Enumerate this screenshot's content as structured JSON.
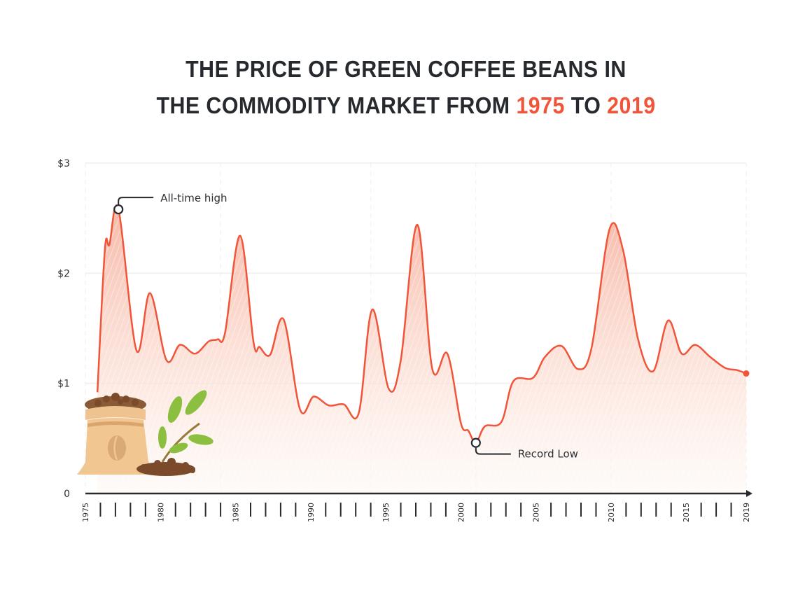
{
  "title": {
    "line1": "THE PRICE OF GREEN COFFEE BEANS IN",
    "line2_prefix": "THE COMMODITY MARKET FROM ",
    "start_year": "1975",
    "middle": " TO ",
    "end_year": "2019"
  },
  "colors": {
    "line": "#f0553a",
    "title": "#262a2e",
    "accent": "#f0553a",
    "fill_top": "#f6b4a2"
  },
  "chart_data": {
    "type": "area",
    "title": "THE PRICE OF GREEN COFFEE BEANS IN THE COMMODITY MARKET FROM 1975 TO 2019",
    "xlabel": "",
    "ylabel": "",
    "xlim": [
      1975,
      2019
    ],
    "ylim": [
      0,
      3
    ],
    "grid": true,
    "y_ticks": [
      {
        "value": 0,
        "label": "0"
      },
      {
        "value": 1,
        "label": "$1"
      },
      {
        "value": 2,
        "label": "$2"
      },
      {
        "value": 3,
        "label": "$3"
      }
    ],
    "x_tick_labels": [
      "1975",
      "1980",
      "1985",
      "1990",
      "1995",
      "2000",
      "2005",
      "2010",
      "2015",
      "2019"
    ],
    "points": [
      [
        1975.8,
        0.92
      ],
      [
        1976.3,
        2.22
      ],
      [
        1976.6,
        2.26
      ],
      [
        1977.2,
        2.58
      ],
      [
        1978.4,
        1.3
      ],
      [
        1979.3,
        1.82
      ],
      [
        1980.4,
        1.21
      ],
      [
        1981.3,
        1.35
      ],
      [
        1982.3,
        1.27
      ],
      [
        1983.2,
        1.38
      ],
      [
        1983.8,
        1.4
      ],
      [
        1984.3,
        1.46
      ],
      [
        1985.3,
        2.34
      ],
      [
        1986.2,
        1.37
      ],
      [
        1986.6,
        1.33
      ],
      [
        1987.3,
        1.26
      ],
      [
        1988.2,
        1.58
      ],
      [
        1989.3,
        0.76
      ],
      [
        1990.2,
        0.88
      ],
      [
        1991.2,
        0.8
      ],
      [
        1992.2,
        0.81
      ],
      [
        1993.2,
        0.73
      ],
      [
        1994.1,
        1.67
      ],
      [
        1995.2,
        0.95
      ],
      [
        1996.0,
        1.21
      ],
      [
        1997.1,
        2.44
      ],
      [
        1998.1,
        1.13
      ],
      [
        1999.1,
        1.27
      ],
      [
        2000.0,
        0.64
      ],
      [
        2000.5,
        0.57
      ],
      [
        2001.0,
        0.46
      ],
      [
        2001.6,
        0.61
      ],
      [
        2002.7,
        0.65
      ],
      [
        2003.5,
        1.02
      ],
      [
        2004.8,
        1.05
      ],
      [
        2005.6,
        1.24
      ],
      [
        2006.7,
        1.34
      ],
      [
        2007.8,
        1.13
      ],
      [
        2008.7,
        1.32
      ],
      [
        2009.9,
        2.4
      ],
      [
        2010.8,
        2.21
      ],
      [
        2011.8,
        1.4
      ],
      [
        2012.8,
        1.11
      ],
      [
        2013.8,
        1.57
      ],
      [
        2014.7,
        1.27
      ],
      [
        2015.6,
        1.35
      ],
      [
        2016.6,
        1.24
      ],
      [
        2017.6,
        1.14
      ],
      [
        2018.4,
        1.12
      ],
      [
        2019.0,
        1.09
      ]
    ],
    "annotations": [
      {
        "label": "All-time high",
        "x": 1977.2,
        "y": 2.58
      },
      {
        "label": "Record Low",
        "x": 2001.0,
        "y": 0.46
      }
    ]
  }
}
